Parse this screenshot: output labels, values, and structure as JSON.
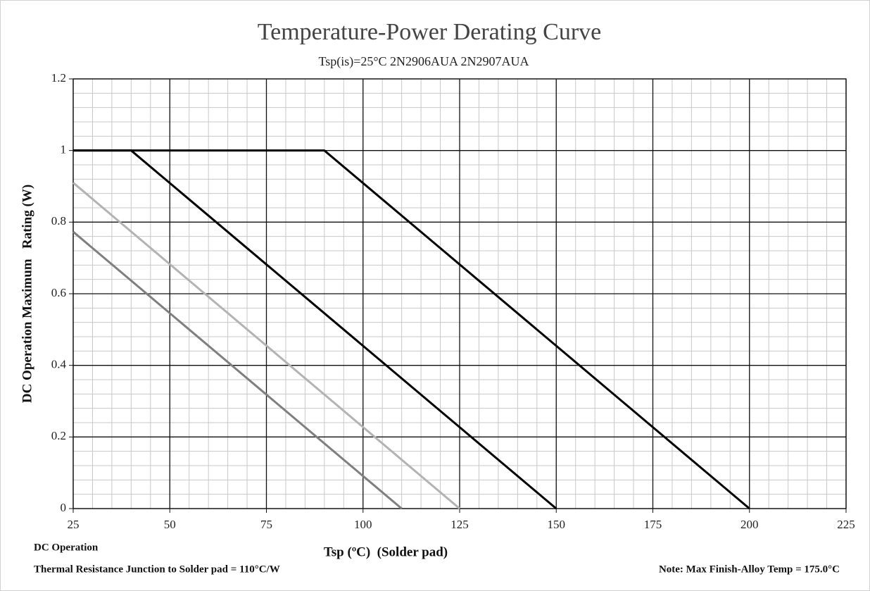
{
  "chart_data": {
    "type": "line",
    "title": "Temperature-Power Derating Curve",
    "subtitle": "Tsp(is)=25°C 2N2906AUA 2N2907AUA",
    "x_label": "Tsp (ºC)  (Solder pad)",
    "y_label": "DC Operation Maximum   Rating (W)",
    "notes": [
      "DC Operation",
      "Thermal Resistance Junction to Solder pad = 110°C/W",
      "Note: Max Finish-Alloy Temp = 175.0°C"
    ],
    "xlim": [
      25,
      225
    ],
    "ylim": [
      0,
      1.2
    ],
    "xticks": [
      25,
      50,
      75,
      100,
      125,
      150,
      175,
      200,
      225
    ],
    "yticks": [
      0,
      0.2,
      0.4,
      0.6,
      0.8,
      1,
      1.2
    ],
    "grid": true,
    "x_minor_step": 5,
    "y_minor_step": 0.04,
    "series": [
      {
        "color": "#000000",
        "x": [
          25,
          90,
          200
        ],
        "values": [
          1,
          1,
          0
        ]
      },
      {
        "color": "#000000",
        "x": [
          25,
          40,
          150
        ],
        "values": [
          1,
          1,
          0
        ]
      },
      {
        "color": "#b3b3b3",
        "x": [
          25,
          125
        ],
        "values": [
          0.91,
          0
        ]
      },
      {
        "color": "#7f7f7f",
        "x": [
          25,
          110
        ],
        "values": [
          0.773,
          0
        ]
      }
    ]
  }
}
